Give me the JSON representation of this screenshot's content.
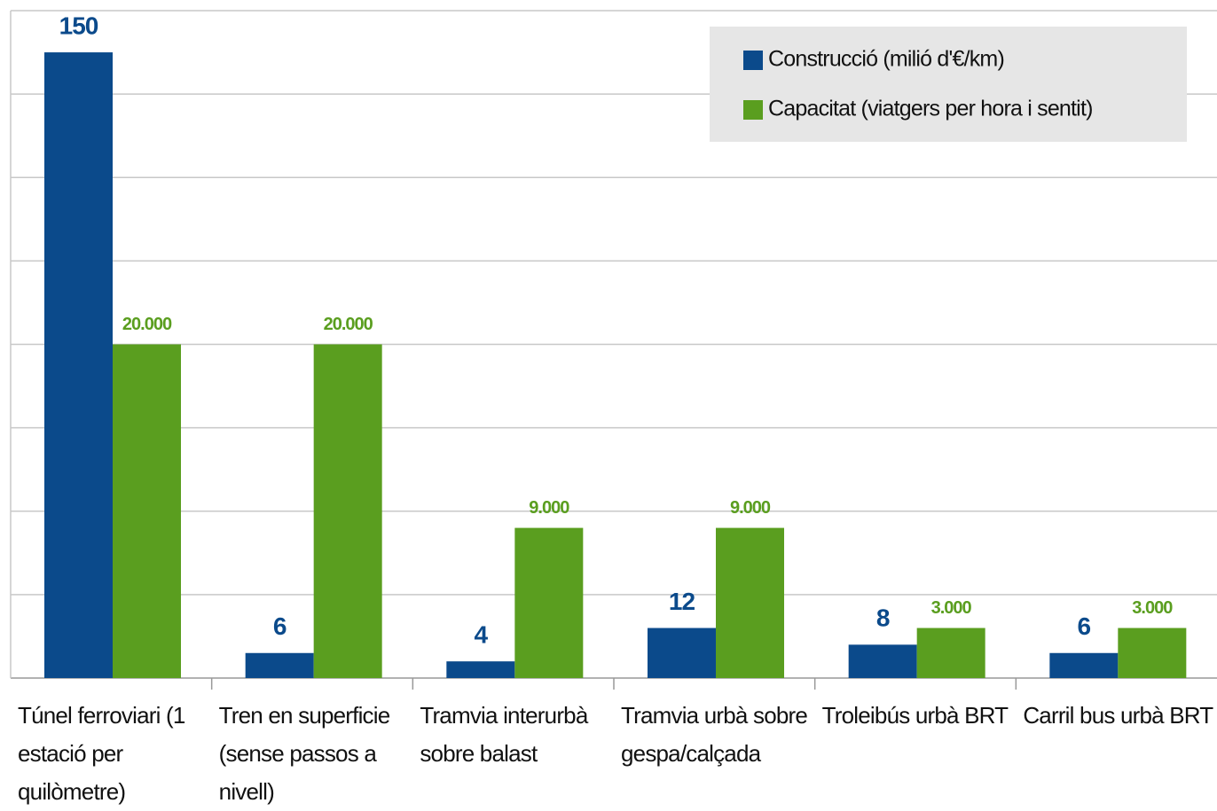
{
  "chart_data": {
    "type": "bar",
    "categories": [
      "Túnel ferroviari (1 estació per quilòmetre)",
      "Tren en superficie (sense passos a nivell)",
      "Tramvia interurbà sobre balast",
      "Tramvia urbà sobre gespa/calçada",
      "Troleibús urbà BRT",
      "Carril bus urbà BRT"
    ],
    "series": [
      {
        "name": "Construcció (milió d'€/km)",
        "color": "#0b4a8b",
        "values": [
          150,
          6,
          4,
          12,
          8,
          6
        ]
      },
      {
        "name": "Capacitat (viatgers per hora i sentit)",
        "color": "#5a9e1f",
        "axis": "y2",
        "values": [
          20000,
          20000,
          9000,
          9000,
          3000,
          3000
        ],
        "value_labels": [
          "20.000",
          "20.000",
          "9.000",
          "9.000",
          "3.000",
          "3.000"
        ]
      }
    ],
    "ylim": [
      0,
      160
    ],
    "yticks": [
      0,
      20,
      40,
      60,
      80,
      100,
      120,
      140,
      160
    ],
    "y2lim": [
      0,
      40000
    ],
    "grid": true,
    "legend": "top-right"
  }
}
